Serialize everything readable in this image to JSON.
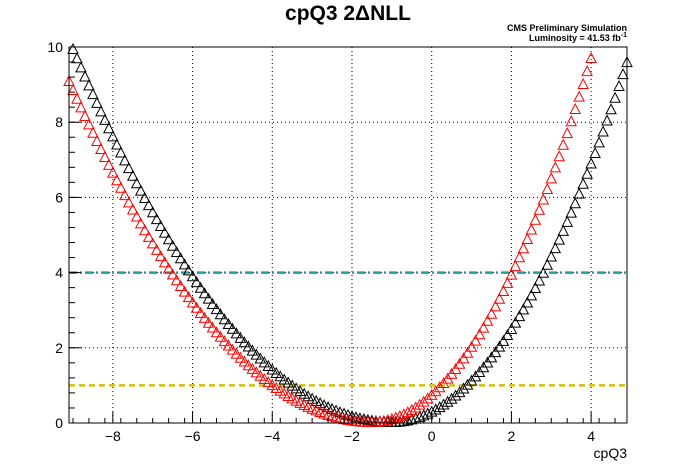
{
  "chart_data": {
    "type": "scatter",
    "title": "cpQ3 2ΔNLL",
    "annotation": {
      "line1": "CMS Preliminary Simulation",
      "line2_prefix": "Luminosity = 41.53 fb",
      "line2_sup": "-1"
    },
    "xlabel": "cpQ3",
    "ylabel": "",
    "xlim": [
      -9.1,
      4.9
    ],
    "ylim": [
      0,
      10
    ],
    "xticks": [
      -8,
      -6,
      -4,
      -2,
      0,
      2,
      4
    ],
    "yticks": [
      0,
      2,
      4,
      6,
      8,
      10
    ],
    "grid": true,
    "marker": "open-triangle",
    "series": [
      {
        "color": "#000000",
        "x_min": -9.1,
        "x_max": 4.9,
        "step": 0.1,
        "minimum_x": -1.0,
        "curvature_left": 0.155,
        "curvature_right": 0.275
      },
      {
        "color": "#ff0000",
        "x_min": -9.1,
        "x_max": 4.0,
        "step": 0.1,
        "minimum_x": -1.5,
        "curvature_left": 0.157,
        "curvature_right": 0.32
      }
    ],
    "reference_lines": [
      {
        "y": 4,
        "color": "#2a9a9a",
        "style": "dash-dot"
      },
      {
        "y": 1,
        "color": "#d4c200",
        "style": "dashed"
      }
    ]
  }
}
